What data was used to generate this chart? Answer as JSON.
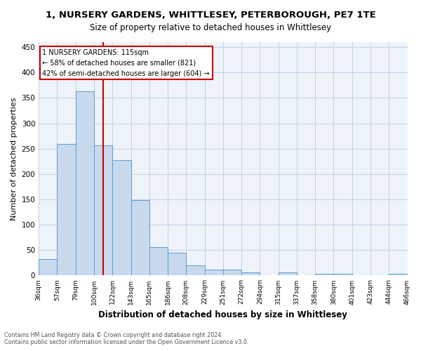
{
  "title": "1, NURSERY GARDENS, WHITTLESEY, PETERBOROUGH, PE7 1TE",
  "subtitle": "Size of property relative to detached houses in Whittlesey",
  "xlabel": "Distribution of detached houses by size in Whittlesey",
  "ylabel": "Number of detached properties",
  "bar_color": "#c8d9ed",
  "bar_edge_color": "#5b9bd5",
  "annotation_line_color": "#cc0000",
  "annotation_box_color": "#cc0000",
  "annotation_text_line1": "1 NURSERY GARDENS: 115sqm",
  "annotation_text_line2": "← 58% of detached houses are smaller (821)",
  "annotation_text_line3": "42% of semi-detached houses are larger (604) →",
  "vline_x": 3.5,
  "bin_labels": [
    "36sqm",
    "57sqm",
    "79sqm",
    "100sqm",
    "122sqm",
    "143sqm",
    "165sqm",
    "186sqm",
    "208sqm",
    "229sqm",
    "251sqm",
    "272sqm",
    "294sqm",
    "315sqm",
    "337sqm",
    "358sqm",
    "380sqm",
    "401sqm",
    "423sqm",
    "444sqm",
    "466sqm"
  ],
  "counts": [
    32,
    260,
    363,
    257,
    228,
    148,
    56,
    45,
    20,
    12,
    11,
    6,
    0,
    6,
    0,
    4,
    4,
    0,
    0,
    4
  ],
  "ylim": [
    0,
    460
  ],
  "yticks": [
    0,
    50,
    100,
    150,
    200,
    250,
    300,
    350,
    400,
    450
  ],
  "footer_line1": "Contains HM Land Registry data © Crown copyright and database right 2024.",
  "footer_line2": "Contains public sector information licensed under the Open Government Licence v3.0.",
  "background_color": "#ffffff",
  "ax_facecolor": "#eef3f9",
  "grid_color": "#c0d0e8"
}
